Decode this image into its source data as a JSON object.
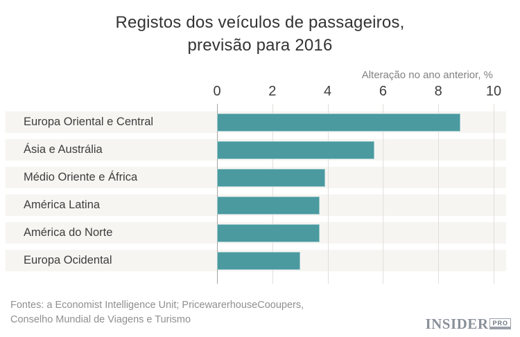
{
  "title": {
    "line1": "Registos dos veículos de passageiros,",
    "line2": "previsão para 2016"
  },
  "chart_data": {
    "type": "bar",
    "orientation": "horizontal",
    "title": "Registos dos veículos de passageiros, previsão para 2016",
    "axis_label": "Alteração no ano anterior, %",
    "categories": [
      "Europa Oriental e Central",
      "Ásia e Austrália",
      "Médio Oriente e África",
      "América Latina",
      "América do Norte",
      "Europa Ocidental"
    ],
    "values": [
      8.8,
      5.7,
      3.9,
      3.7,
      3.7,
      3.0
    ],
    "xlim": [
      0,
      10
    ],
    "xticks": [
      0,
      2,
      4,
      6,
      8,
      10
    ],
    "grid": "vertical",
    "legend": "none",
    "bar_color": "#4a9aa0",
    "band_color": "#f6f5f2"
  },
  "footer": {
    "line1": "Fontes: a Economist Intelligence Unit; PricewarerhouseCooupers,",
    "line2": "Conselho Mundial de Viagens e Turismo",
    "logo_main": "INSIDER",
    "logo_pro": "PRO"
  }
}
